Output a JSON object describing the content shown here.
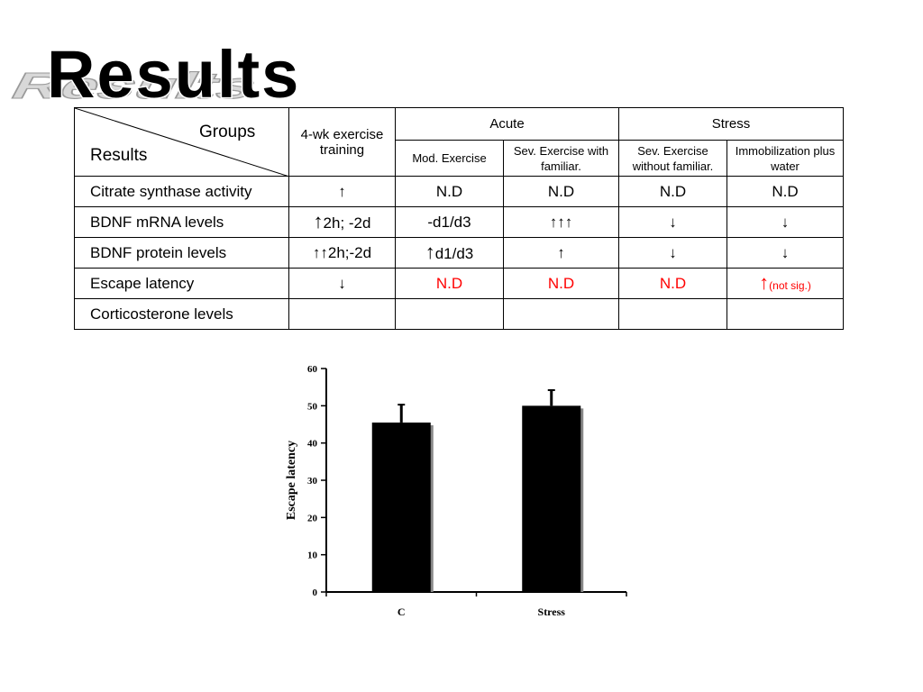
{
  "slide": {
    "title": "Results"
  },
  "table": {
    "corner": {
      "top": "Groups",
      "bottom": "Results"
    },
    "headers": {
      "training": "4-wk exercise training",
      "acute": "Acute",
      "stress": "Stress",
      "mod_exercise": "Mod. Exercise",
      "sev_familiar": "Sev. Exercise with familiar.",
      "sev_without": "Sev. Exercise without familiar.",
      "immobilization": "Immobilization plus water"
    },
    "rows": [
      {
        "label": "Citrate synthase activity",
        "cells": [
          "↑",
          "N.D",
          "N.D",
          "N.D",
          "N.D"
        ]
      },
      {
        "label": "BDNF mRNA levels",
        "cells": [
          "2h; -2d",
          "-d1/d3",
          "↑↑↑",
          "↓",
          "↓"
        ]
      },
      {
        "label": "BDNF protein levels",
        "cells": [
          "↑↑2h;-2d",
          "d1/d3",
          "↑",
          "↓",
          "↓"
        ]
      },
      {
        "label": "Escape latency",
        "cells": [
          "↓",
          "N.D",
          "N.D",
          "N.D",
          "(not sig.)"
        ]
      },
      {
        "label": "Corticosterone levels",
        "cells": [
          "",
          "",
          "",
          "",
          ""
        ]
      }
    ],
    "arrow_up": "↑",
    "highlight_color": "#ff0000"
  },
  "chart_data": {
    "type": "bar",
    "categories": [
      "C",
      "Stress"
    ],
    "values": [
      45.5,
      50
    ],
    "errors": [
      4.8,
      4.2
    ],
    "ylabel": "Escape latency",
    "ylim": [
      0,
      60
    ],
    "yticks": [
      0,
      10,
      20,
      30,
      40,
      50,
      60
    ],
    "bar_color": "#000000",
    "grid": false
  }
}
